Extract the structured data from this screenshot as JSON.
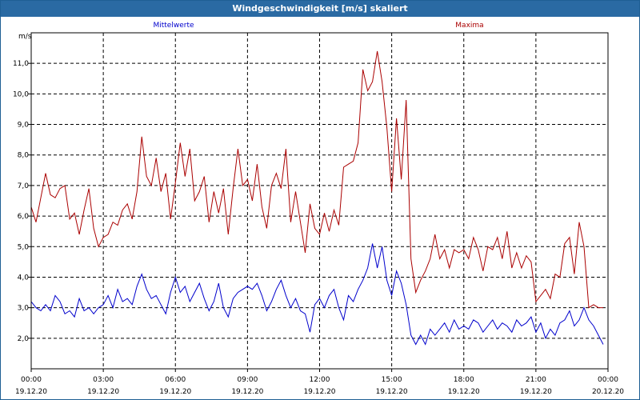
{
  "window": {
    "title": "Windgeschwindigkeit [m/s] skaliert"
  },
  "chart_data": {
    "type": "line",
    "title": "Windgeschwindigkeit [m/s] skaliert",
    "ylabel": "m/s",
    "ylim": [
      1.0,
      12.0
    ],
    "yticks": [
      "2,0",
      "3,0",
      "4,0",
      "5,0",
      "6,0",
      "7,0",
      "8,0",
      "9,0",
      "10,0",
      "11,0"
    ],
    "xlim": [
      0,
      24
    ],
    "xticks": [
      {
        "time": "00:00",
        "date": "19.12.20"
      },
      {
        "time": "03:00",
        "date": "19.12.20"
      },
      {
        "time": "06:00",
        "date": "19.12.20"
      },
      {
        "time": "09:00",
        "date": "19.12.20"
      },
      {
        "time": "12:00",
        "date": "19.12.20"
      },
      {
        "time": "15:00",
        "date": "19.12.20"
      },
      {
        "time": "18:00",
        "date": "19.12.20"
      },
      {
        "time": "21:00",
        "date": "19.12.20"
      },
      {
        "time": "00:00",
        "date": "20.12.20"
      }
    ],
    "grid": true,
    "x_hours": [
      0,
      0.2,
      0.4,
      0.6,
      0.8,
      1.0,
      1.2,
      1.4,
      1.6,
      1.8,
      2.0,
      2.2,
      2.4,
      2.6,
      2.8,
      3.0,
      3.2,
      3.4,
      3.6,
      3.8,
      4.0,
      4.2,
      4.4,
      4.6,
      4.8,
      5.0,
      5.2,
      5.4,
      5.6,
      5.8,
      6.0,
      6.2,
      6.4,
      6.6,
      6.8,
      7.0,
      7.2,
      7.4,
      7.6,
      7.8,
      8.0,
      8.2,
      8.4,
      8.6,
      8.8,
      9.0,
      9.2,
      9.4,
      9.6,
      9.8,
      10.0,
      10.2,
      10.4,
      10.6,
      10.8,
      11.0,
      11.2,
      11.4,
      11.6,
      11.8,
      12.0,
      12.2,
      12.4,
      12.6,
      12.8,
      13.0,
      13.2,
      13.4,
      13.6,
      13.8,
      14.0,
      14.2,
      14.4,
      14.6,
      14.8,
      15.0,
      15.2,
      15.4,
      15.6,
      15.8,
      16.0,
      16.2,
      16.4,
      16.6,
      16.8,
      17.0,
      17.2,
      17.4,
      17.6,
      17.8,
      18.0,
      18.2,
      18.4,
      18.6,
      18.8,
      19.0,
      19.2,
      19.4,
      19.6,
      19.8,
      20.0,
      20.2,
      20.4,
      20.6,
      20.8,
      21.0,
      21.2,
      21.4,
      21.6,
      21.8,
      22.0,
      22.2,
      22.4,
      22.6,
      22.8,
      23.0,
      23.2,
      23.4,
      23.6,
      23.8
    ],
    "series": [
      {
        "name": "Mittelwerte",
        "color": "#0000cc",
        "values": [
          3.2,
          3.0,
          2.9,
          3.1,
          2.9,
          3.4,
          3.2,
          2.8,
          2.9,
          2.7,
          3.3,
          2.9,
          3.0,
          2.8,
          3.0,
          3.1,
          3.4,
          3.0,
          3.6,
          3.2,
          3.3,
          3.1,
          3.7,
          4.1,
          3.6,
          3.3,
          3.4,
          3.1,
          2.8,
          3.5,
          4.0,
          3.5,
          3.7,
          3.2,
          3.5,
          3.8,
          3.3,
          2.9,
          3.2,
          3.8,
          3.0,
          2.7,
          3.3,
          3.5,
          3.6,
          3.7,
          3.6,
          3.8,
          3.4,
          2.9,
          3.2,
          3.6,
          3.9,
          3.4,
          3.0,
          3.3,
          2.9,
          2.8,
          2.2,
          3.1,
          3.3,
          3.0,
          3.4,
          3.6,
          3.0,
          2.6,
          3.4,
          3.2,
          3.6,
          3.9,
          4.3,
          5.1,
          4.3,
          5.0,
          3.9,
          3.4,
          4.2,
          3.8,
          3.1,
          2.1,
          1.8,
          2.1,
          1.8,
          2.3,
          2.1,
          2.3,
          2.5,
          2.2,
          2.6,
          2.3,
          2.4,
          2.3,
          2.6,
          2.5,
          2.2,
          2.4,
          2.6,
          2.3,
          2.5,
          2.4,
          2.2,
          2.6,
          2.4,
          2.5,
          2.7,
          2.2,
          2.5,
          2.0,
          2.3,
          2.1,
          2.5,
          2.6,
          2.9,
          2.4,
          2.6,
          3.0,
          2.6,
          2.4,
          2.1,
          1.8
        ]
      },
      {
        "name": "Maxima",
        "color": "#aa0000",
        "values": [
          6.3,
          5.8,
          6.6,
          7.4,
          6.7,
          6.6,
          6.9,
          7.0,
          5.9,
          6.1,
          5.4,
          6.2,
          6.9,
          5.6,
          5.0,
          5.3,
          5.4,
          5.8,
          5.7,
          6.2,
          6.4,
          5.9,
          6.8,
          8.6,
          7.3,
          7.0,
          7.9,
          6.8,
          7.4,
          5.9,
          7.1,
          8.4,
          7.3,
          8.2,
          6.5,
          6.8,
          7.3,
          5.8,
          6.8,
          6.1,
          6.9,
          5.4,
          6.9,
          8.2,
          7.0,
          7.2,
          6.5,
          7.7,
          6.3,
          5.6,
          7.0,
          7.4,
          6.9,
          8.2,
          5.8,
          6.8,
          5.8,
          4.8,
          6.4,
          5.6,
          5.4,
          6.1,
          5.5,
          6.2,
          5.7,
          7.6,
          7.7,
          7.8,
          8.4,
          10.8,
          10.1,
          10.4,
          11.4,
          10.4,
          8.9,
          6.8,
          9.2,
          7.2,
          9.8,
          4.6,
          3.5,
          3.9,
          4.2,
          4.6,
          5.4,
          4.6,
          4.9,
          4.3,
          4.9,
          4.8,
          4.9,
          4.6,
          5.3,
          4.9,
          4.2,
          5.0,
          4.9,
          5.3,
          4.6,
          5.5,
          4.3,
          4.8,
          4.3,
          4.7,
          4.5,
          3.2,
          3.4,
          3.6,
          3.3,
          4.1,
          4.0,
          5.1,
          5.3,
          4.1,
          5.8,
          5.0,
          3.0,
          3.1,
          3.0,
          3.0
        ]
      }
    ]
  }
}
